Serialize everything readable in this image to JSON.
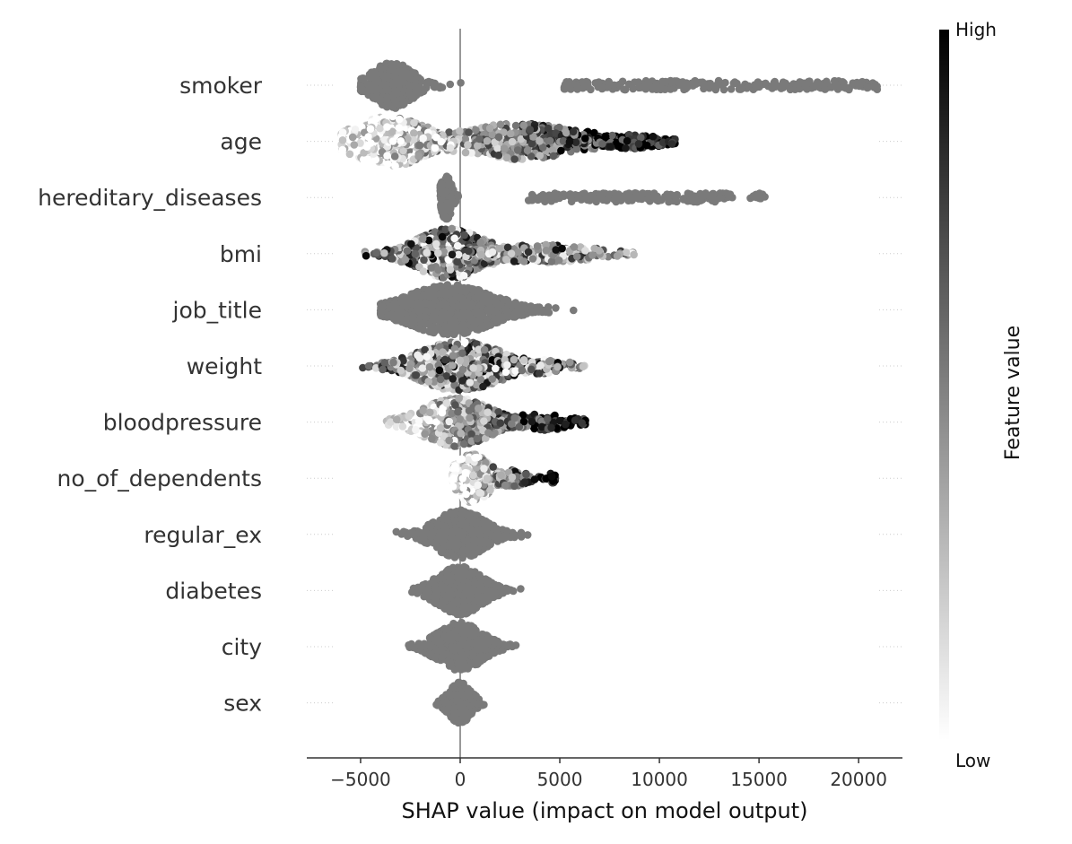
{
  "chart_data": {
    "type": "scatter",
    "subtype": "shap-beeswarm",
    "title": "",
    "xlabel": "SHAP value (impact on model output)",
    "xlim": [
      -7700,
      22200
    ],
    "xticks": [
      -5000,
      0,
      5000,
      10000,
      15000,
      20000
    ],
    "xtick_labels": [
      "−5000",
      "0",
      "5000",
      "10000",
      "15000",
      "20000"
    ],
    "colorbar": {
      "label": "Feature value",
      "high": "High",
      "low": "Low",
      "high_color": "#000000",
      "low_color": "#ffffff",
      "neutral_color": "#7a7a7a"
    },
    "features": [
      {
        "name": "smoker",
        "mode": "gray",
        "min": -5000,
        "max": 21000,
        "peak": -3400,
        "width": 42,
        "blobs": [
          {
            "center": -3400,
            "spread": 900,
            "maxh": 52,
            "n": 420
          },
          {
            "center": 12500,
            "spread": 8000,
            "maxh": 10,
            "n": 260,
            "uniform": true,
            "from": 5200,
            "to": 21000
          }
        ]
      },
      {
        "name": "age",
        "mode": "color",
        "min": -6000,
        "max": 10800,
        "blobs": [
          {
            "center": -3500,
            "spread": 1600,
            "maxh": 56,
            "n": 520
          },
          {
            "center": 3000,
            "spread": 2800,
            "maxh": 40,
            "n": 420
          },
          {
            "center": 8500,
            "spread": 1500,
            "maxh": 16,
            "n": 140
          }
        ]
      },
      {
        "name": "hereditary_diseases",
        "mode": "gray",
        "min": -1000,
        "max": 15400,
        "blobs": [
          {
            "center": -700,
            "spread": 250,
            "maxh": 50,
            "n": 180
          },
          {
            "center": 8500,
            "spread": 5000,
            "maxh": 10,
            "n": 200,
            "uniform": true,
            "from": 3400,
            "to": 13700
          },
          {
            "center": 15000,
            "spread": 200,
            "maxh": 10,
            "n": 16
          }
        ]
      },
      {
        "name": "bmi",
        "mode": "color",
        "min": -4800,
        "max": 8800,
        "blobs": [
          {
            "center": -500,
            "spread": 1500,
            "maxh": 56,
            "n": 520
          },
          {
            "center": 4000,
            "spread": 2500,
            "maxh": 20,
            "n": 220
          }
        ]
      },
      {
        "name": "job_title",
        "mode": "gray",
        "min": -4000,
        "max": 5800,
        "blobs": [
          {
            "center": -500,
            "spread": 1900,
            "maxh": 56,
            "n": 900
          }
        ]
      },
      {
        "name": "weight",
        "mode": "color",
        "min": -5100,
        "max": 6400,
        "blobs": [
          {
            "center": 0,
            "spread": 1800,
            "maxh": 56,
            "n": 560
          },
          {
            "center": 3500,
            "spread": 1600,
            "maxh": 18,
            "n": 120
          }
        ]
      },
      {
        "name": "bloodpressure",
        "mode": "color",
        "min": -3700,
        "max": 6300,
        "blobs": [
          {
            "center": -200,
            "spread": 1500,
            "maxh": 54,
            "n": 520
          },
          {
            "center": 4000,
            "spread": 1500,
            "maxh": 18,
            "n": 140
          }
        ]
      },
      {
        "name": "no_of_dependents",
        "mode": "color",
        "min": -400,
        "max": 4800,
        "blobs": [
          {
            "center": 600,
            "spread": 800,
            "maxh": 54,
            "n": 380
          },
          {
            "center": 2600,
            "spread": 700,
            "maxh": 18,
            "n": 90
          },
          {
            "center": 4600,
            "spread": 150,
            "maxh": 12,
            "n": 20
          }
        ]
      },
      {
        "name": "regular_ex",
        "mode": "gray",
        "min": -4300,
        "max": 3500,
        "blobs": [
          {
            "center": 0,
            "spread": 1100,
            "maxh": 54,
            "n": 600
          }
        ]
      },
      {
        "name": "diabetes",
        "mode": "gray",
        "min": -3800,
        "max": 3200,
        "blobs": [
          {
            "center": 0,
            "spread": 1000,
            "maxh": 54,
            "n": 560
          }
        ]
      },
      {
        "name": "city",
        "mode": "gray",
        "min": -2600,
        "max": 3300,
        "blobs": [
          {
            "center": 0,
            "spread": 1000,
            "maxh": 54,
            "n": 560
          }
        ]
      },
      {
        "name": "sex",
        "mode": "gray",
        "min": -1200,
        "max": 1200,
        "blobs": [
          {
            "center": 0,
            "spread": 500,
            "maxh": 46,
            "n": 260
          }
        ]
      }
    ]
  }
}
